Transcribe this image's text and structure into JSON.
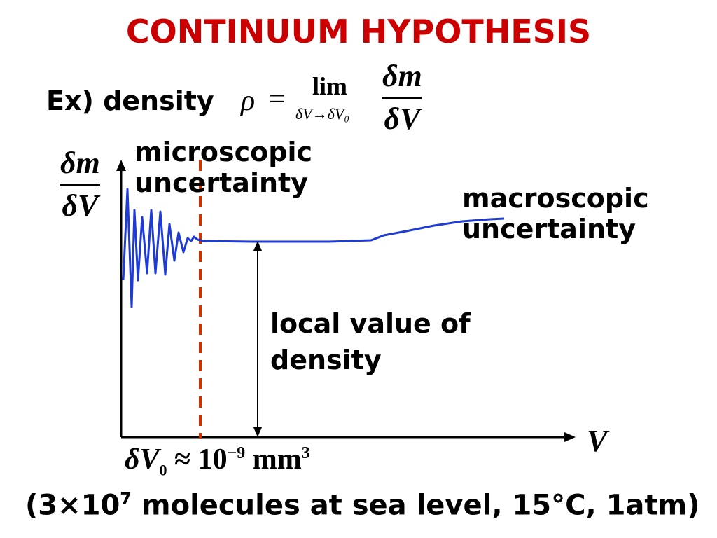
{
  "title": "CONTINUUM HYPOTHESIS",
  "colors": {
    "title": "#cc0000",
    "curve": "#1f3bd6",
    "dashed_line": "#cc3300",
    "axis": "#000000"
  },
  "definition": {
    "label": "Ex) density",
    "symbol": "ρ",
    "equals": "=",
    "lim": "lim",
    "lim_sub": "δV→δV₀",
    "numerator": "δm",
    "denominator": "δV"
  },
  "axes": {
    "y_numerator": "δm",
    "y_denominator": "δV",
    "x": "V"
  },
  "annotations": {
    "micro": [
      "microscopic",
      "uncertainty"
    ],
    "macro": [
      "macroscopic",
      "uncertainty"
    ],
    "local": [
      "local value of",
      "density"
    ]
  },
  "threshold": {
    "lhs": "δV",
    "sub": "0",
    "approx": "≈",
    "base": "10",
    "exp": "−9",
    "unit": "mm",
    "unit_exp": "3"
  },
  "footnote": {
    "prefix": "(3×10",
    "exp": "7",
    "rest": " molecules at sea level, 15°C, 1atm)"
  }
}
